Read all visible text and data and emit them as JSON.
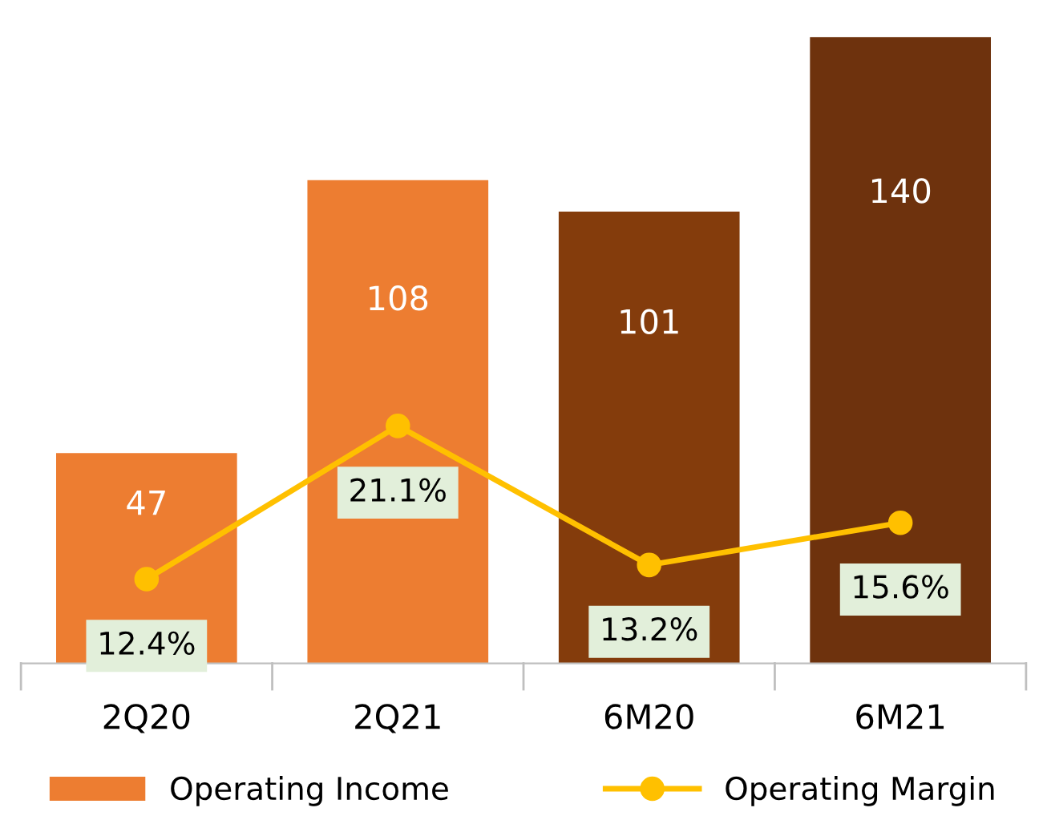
{
  "chart_data": {
    "type": "bar",
    "categories": [
      "2Q20",
      "2Q21",
      "6M20",
      "6M21"
    ],
    "series": [
      {
        "name": "Operating Income",
        "color": "#ed7d31",
        "colors": [
          "#ed7d31",
          "#ed7d31",
          "#843c0c",
          "#6e320d"
        ],
        "values": [
          47,
          108,
          101,
          140
        ],
        "value_labels": [
          "47",
          "108",
          "101",
          "140"
        ]
      },
      {
        "name": "Operating Margin",
        "type": "line",
        "axis": "y2",
        "color": "#ffc000",
        "values": [
          12.4,
          21.1,
          13.2,
          15.6
        ],
        "value_labels": [
          "12.4%",
          "21.1%",
          "13.2%",
          "15.6%"
        ]
      }
    ],
    "tick_labels": "x",
    "legend": "bottom",
    "marker": "circle",
    "line_style": "solid",
    "grid": false
  }
}
